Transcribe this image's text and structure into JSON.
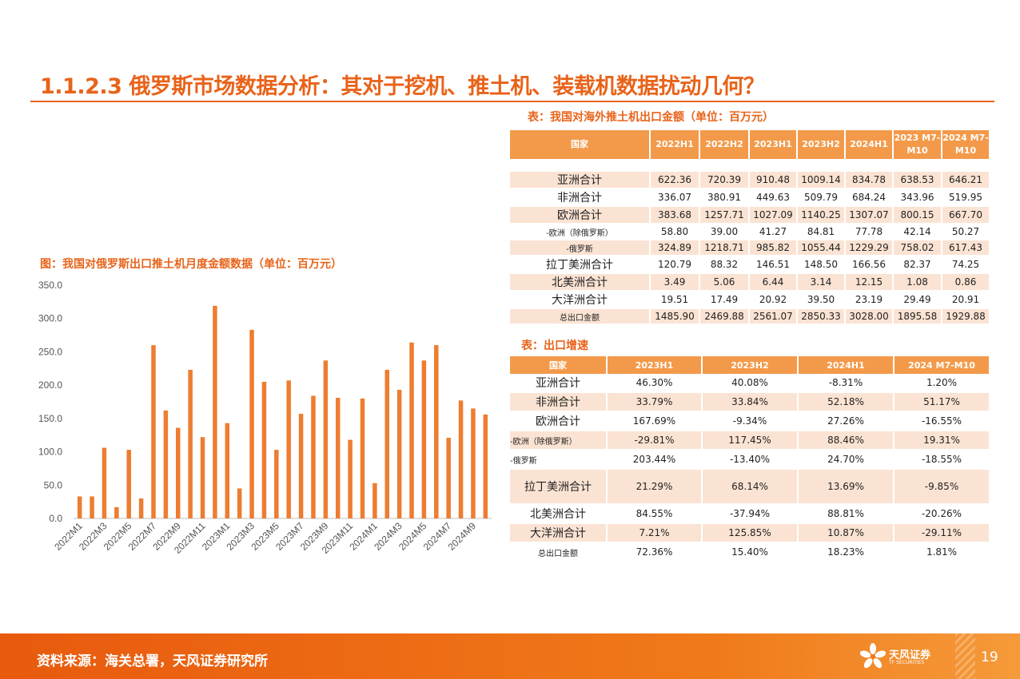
{
  "title": "1.1.2.3 俄罗斯市场数据分析：其对于挖机、推土机、装载机数据扰动几何？",
  "chart": {
    "caption": "图：我国对俄罗斯出口推土机月度金额数据（单位：百万元）"
  },
  "chart_data": {
    "type": "bar",
    "title": "",
    "xlabel": "",
    "ylabel": "",
    "ylim": [
      0,
      350
    ],
    "y_ticks": [
      "0.0",
      "50.0",
      "100.0",
      "150.0",
      "200.0",
      "250.0",
      "300.0",
      "350.0"
    ],
    "x_tick_labels": [
      "2022M1",
      "2022M3",
      "2022M5",
      "2022M7",
      "2022M9",
      "2022M11",
      "2023M1",
      "2023M3",
      "2023M5",
      "2023M7",
      "2023M9",
      "2023M11",
      "2024M1",
      "2024M3",
      "2024M5",
      "2024M7",
      "2024M9"
    ],
    "grid": false,
    "legend": "none",
    "bar_color": "#ed7d31",
    "categories": [
      "2022M1",
      "2022M2",
      "2022M3",
      "2022M4",
      "2022M5",
      "2022M6",
      "2022M7",
      "2022M8",
      "2022M9",
      "2022M10",
      "2022M11",
      "2022M12",
      "2023M1",
      "2023M2",
      "2023M3",
      "2023M4",
      "2023M5",
      "2023M6",
      "2023M7",
      "2023M8",
      "2023M9",
      "2023M10",
      "2023M11",
      "2023M12",
      "2024M1",
      "2024M2",
      "2024M3",
      "2024M4",
      "2024M5",
      "2024M6",
      "2024M7",
      "2024M8",
      "2024M9",
      "2024M10"
    ],
    "values": [
      33,
      33,
      106,
      17,
      103,
      30,
      260,
      162,
      136,
      223,
      122,
      319,
      143,
      45,
      283,
      205,
      103,
      207,
      157,
      184,
      237,
      181,
      118,
      180,
      53,
      223,
      193,
      264,
      237,
      260,
      121,
      177,
      165,
      156
    ]
  },
  "table1": {
    "caption": "表：我国对海外推土机出口金额（单位：百万元）",
    "headers": [
      "国家",
      "2022H1",
      "2022H2",
      "2023H1",
      "2023H2",
      "2024H1",
      "2023 M7-M10",
      "2024 M7-M10"
    ],
    "rows": [
      {
        "name": "亚洲合计",
        "small": false,
        "values": [
          "622.36",
          "720.39",
          "910.48",
          "1009.14",
          "834.78",
          "638.53",
          "646.21"
        ]
      },
      {
        "name": "非洲合计",
        "small": false,
        "values": [
          "336.07",
          "380.91",
          "449.63",
          "509.79",
          "684.24",
          "343.96",
          "519.95"
        ]
      },
      {
        "name": "欧洲合计",
        "small": false,
        "values": [
          "383.68",
          "1257.71",
          "1027.09",
          "1140.25",
          "1307.07",
          "800.15",
          "667.70"
        ]
      },
      {
        "name": "-欧洲（除俄罗斯）",
        "small": true,
        "values": [
          "58.80",
          "39.00",
          "41.27",
          "84.81",
          "77.78",
          "42.14",
          "50.27"
        ]
      },
      {
        "name": "-俄罗斯",
        "small": true,
        "values": [
          "324.89",
          "1218.71",
          "985.82",
          "1055.44",
          "1229.29",
          "758.02",
          "617.43"
        ]
      },
      {
        "name": "拉丁美洲合计",
        "small": false,
        "values": [
          "120.79",
          "88.32",
          "146.51",
          "148.50",
          "166.56",
          "82.37",
          "74.25"
        ]
      },
      {
        "name": "北美洲合计",
        "small": false,
        "values": [
          "3.49",
          "5.06",
          "6.44",
          "3.14",
          "12.15",
          "1.08",
          "0.86"
        ]
      },
      {
        "name": "大洋洲合计",
        "small": false,
        "values": [
          "19.51",
          "17.49",
          "20.92",
          "39.50",
          "23.19",
          "29.49",
          "20.91"
        ]
      },
      {
        "name": "总出口金额",
        "small": true,
        "values": [
          "1485.90",
          "2469.88",
          "2561.07",
          "2850.33",
          "3028.00",
          "1895.58",
          "1929.88"
        ]
      }
    ]
  },
  "table2": {
    "caption": "表：出口增速",
    "headers": [
      "国家",
      "2023H1",
      "2023H2",
      "2024H1",
      "2024 M7-M10"
    ],
    "rows": [
      {
        "name": "亚洲合计",
        "small": false,
        "tall": false,
        "values": [
          "46.30%",
          "40.08%",
          "-8.31%",
          "1.20%"
        ]
      },
      {
        "name": "非洲合计",
        "small": false,
        "tall": false,
        "values": [
          "33.79%",
          "33.84%",
          "52.18%",
          "51.17%"
        ]
      },
      {
        "name": "欧洲合计",
        "small": false,
        "tall": false,
        "values": [
          "167.69%",
          "-9.34%",
          "27.26%",
          "-16.55%"
        ]
      },
      {
        "name": "-欧洲（除俄罗斯）",
        "small": true,
        "tall": false,
        "values": [
          "-29.81%",
          "117.45%",
          "88.46%",
          "19.31%"
        ]
      },
      {
        "name": "-俄罗斯",
        "small": true,
        "tall": false,
        "values": [
          "203.44%",
          "-13.40%",
          "24.70%",
          "-18.55%"
        ]
      },
      {
        "name": "拉丁美洲合计",
        "small": false,
        "tall": true,
        "values": [
          "21.29%",
          "68.14%",
          "13.69%",
          "-9.85%"
        ]
      },
      {
        "name": "北美洲合计",
        "small": false,
        "tall": false,
        "values": [
          "84.55%",
          "-37.94%",
          "88.81%",
          "-20.26%"
        ]
      },
      {
        "name": "大洋洲合计",
        "small": false,
        "tall": false,
        "values": [
          "7.21%",
          "125.85%",
          "10.87%",
          "-29.11%"
        ]
      },
      {
        "name": "总出口金额",
        "small": true,
        "tall": false,
        "values": [
          "72.36%",
          "15.40%",
          "18.23%",
          "1.81%"
        ]
      }
    ]
  },
  "footer": {
    "source": "资料来源：海关总署，天风证券研究所",
    "logo_text": "天风证券",
    "logo_sub": "TF SECURITIES",
    "page_number": "19"
  }
}
